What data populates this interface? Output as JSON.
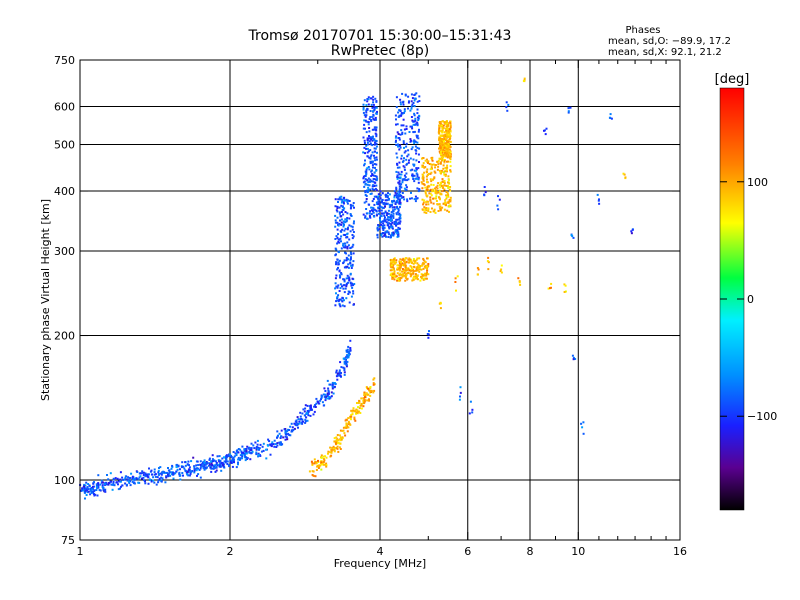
{
  "chart_data": {
    "type": "scatter",
    "title": "Tromsø 20170701 15:30:00–15:31:43",
    "subtitle": "RwPretec (8p)",
    "xlabel": "Frequency [MHz]",
    "ylabel": "Stationary phase Virtual Height [km]",
    "x_scale": "log",
    "y_scale": "log",
    "xlim": [
      1,
      16
    ],
    "ylim": [
      75,
      750
    ],
    "x_ticks": [
      1,
      2,
      4,
      6,
      8,
      10,
      16
    ],
    "x_tick_labels": [
      "1",
      "2",
      "4",
      "6",
      "8",
      "10",
      "16"
    ],
    "x_grid": [
      2,
      4,
      6,
      8,
      10
    ],
    "x_minor_ticks": [
      3,
      5,
      7,
      9,
      11,
      12,
      13,
      14,
      15
    ],
    "y_ticks": [
      75,
      100,
      200,
      300,
      400,
      500,
      600,
      750
    ],
    "y_tick_labels": [
      "75",
      "100",
      "200",
      "300",
      "400",
      "500",
      "600",
      "750"
    ],
    "y_grid": [
      100,
      200,
      300,
      400,
      500,
      600
    ],
    "grid": true,
    "stats": {
      "heading": "Phases",
      "line_o": "mean, sd,O: −89.9, 17.2",
      "line_x": "mean, sd,X:  92.1, 21.2"
    },
    "colorbar": {
      "label": "[deg]",
      "range": [
        -180,
        180
      ],
      "ticks": [
        100,
        0,
        -100
      ],
      "tick_labels": [
        "100",
        "0",
        "−100"
      ],
      "placement": "right"
    },
    "series": [
      {
        "mode": "O",
        "mean_phase": -89.9,
        "color": "#1f45ff",
        "trace": [
          [
            1.0,
            97
          ],
          [
            1.05,
            95
          ],
          [
            1.1,
            98
          ],
          [
            1.2,
            99
          ],
          [
            1.3,
            100
          ],
          [
            1.4,
            102
          ],
          [
            1.5,
            103
          ],
          [
            1.6,
            105
          ],
          [
            1.7,
            106
          ],
          [
            1.8,
            107
          ],
          [
            1.9,
            108
          ],
          [
            2.0,
            110
          ],
          [
            2.1,
            112
          ],
          [
            2.2,
            115
          ],
          [
            2.4,
            118
          ],
          [
            2.6,
            125
          ],
          [
            2.8,
            135
          ],
          [
            3.0,
            145
          ],
          [
            3.2,
            155
          ],
          [
            3.4,
            175
          ],
          [
            3.5,
            190
          ]
        ],
        "clusters": [
          {
            "x": [
              3.25,
              3.55
            ],
            "y": [
              230,
              390
            ]
          },
          {
            "x": [
              3.7,
              3.95
            ],
            "y": [
              350,
              630
            ]
          },
          {
            "x": [
              3.95,
              4.4
            ],
            "y": [
              320,
              400
            ]
          },
          {
            "x": [
              4.3,
              4.8
            ],
            "y": [
              380,
              640
            ]
          }
        ],
        "scatter": [
          [
            5.0,
            200
          ],
          [
            5.8,
            150
          ],
          [
            6.1,
            140
          ],
          [
            6.5,
            400
          ],
          [
            6.9,
            380
          ],
          [
            7.2,
            600
          ],
          [
            8.6,
            540
          ],
          [
            9.6,
            580
          ],
          [
            9.7,
            320
          ],
          [
            9.8,
            180
          ],
          [
            10.2,
            130
          ],
          [
            11.0,
            380
          ],
          [
            11.6,
            570
          ],
          [
            12.8,
            330
          ]
        ]
      },
      {
        "mode": "X",
        "mean_phase": 92.1,
        "color": "#ffd200",
        "trace": [
          [
            2.9,
            105
          ],
          [
            3.1,
            110
          ],
          [
            3.3,
            120
          ],
          [
            3.5,
            135
          ],
          [
            3.7,
            145
          ],
          [
            3.9,
            160
          ]
        ],
        "clusters": [
          {
            "x": [
              4.85,
              5.55
            ],
            "y": [
              360,
              470
            ]
          },
          {
            "x": [
              5.25,
              5.55
            ],
            "y": [
              470,
              560
            ]
          },
          {
            "x": [
              4.2,
              5.0
            ],
            "y": [
              260,
              290
            ]
          }
        ],
        "scatter": [
          [
            5.3,
            230
          ],
          [
            5.7,
            260
          ],
          [
            6.3,
            275
          ],
          [
            6.6,
            285
          ],
          [
            7.0,
            275
          ],
          [
            7.6,
            260
          ],
          [
            8.8,
            250
          ],
          [
            9.4,
            245
          ],
          [
            7.8,
            680
          ],
          [
            12.4,
            420
          ]
        ]
      }
    ]
  }
}
